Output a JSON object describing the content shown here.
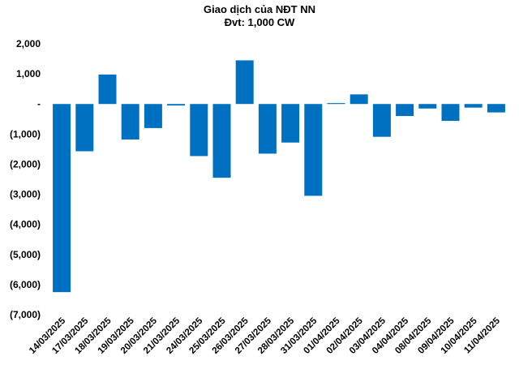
{
  "chart_data": {
    "type": "bar",
    "title": "Giao dịch của NĐT NN",
    "subtitle": "Đvt: 1,000 CW",
    "xlabel": "",
    "ylabel": "",
    "ylim": [
      -7000,
      2000
    ],
    "yticks": [
      2000,
      1000,
      0,
      -1000,
      -2000,
      -3000,
      -4000,
      -5000,
      -6000,
      -7000
    ],
    "ytick_labels": [
      "2,000",
      "1,000",
      "-",
      "(1,000)",
      "(2,000)",
      "(3,000)",
      "(4,000)",
      "(5,000)",
      "(6,000)",
      "(7,000)"
    ],
    "categories": [
      "14/03/2025",
      "17/03/2025",
      "18/03/2025",
      "19/03/2025",
      "20/03/2025",
      "21/03/2025",
      "24/03/2025",
      "25/03/2025",
      "26/03/2025",
      "27/03/2025",
      "28/03/2025",
      "31/03/2025",
      "01/04/2025",
      "02/04/2025",
      "03/04/2025",
      "04/04/2025",
      "08/04/2025",
      "09/04/2025",
      "10/04/2025",
      "11/04/2025"
    ],
    "values": [
      -6250,
      -1570,
      980,
      -1180,
      -800,
      -50,
      -1730,
      -2450,
      1450,
      -1650,
      -1280,
      -3050,
      30,
      320,
      -1090,
      -400,
      -150,
      -560,
      -120,
      -280
    ],
    "bar_color": "#0070c0",
    "grid": false,
    "legend": "none"
  }
}
